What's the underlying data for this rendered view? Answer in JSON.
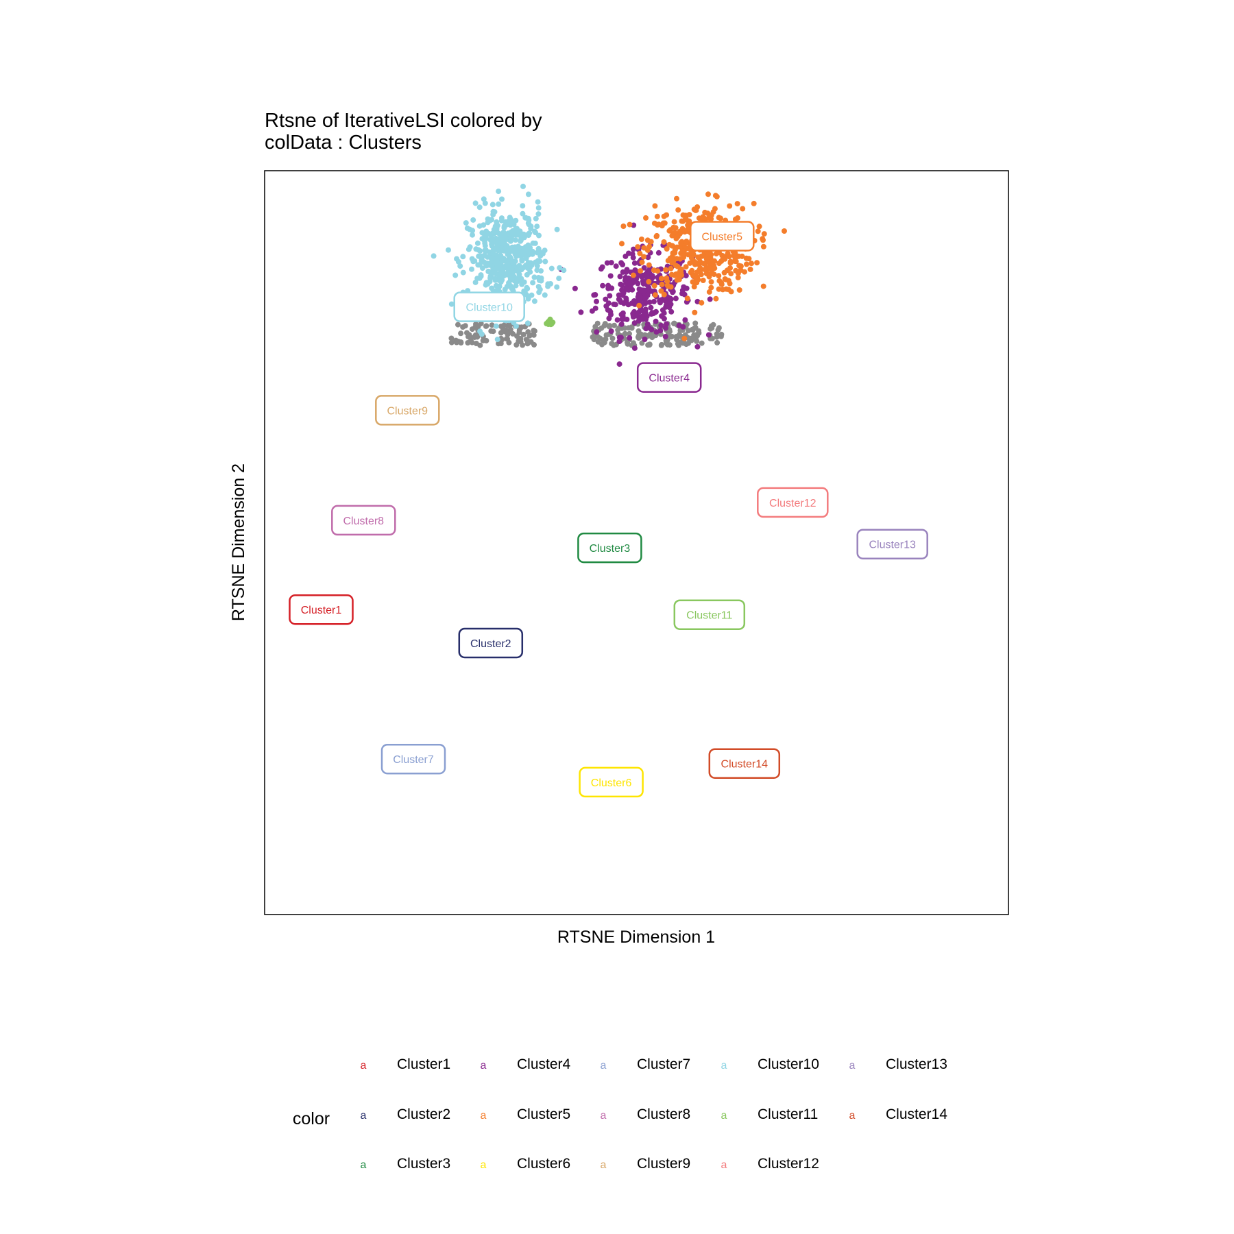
{
  "chart_data": {
    "type": "scatter",
    "title": "Rtsne of IterativeLSI  colored by colData :  Clusters",
    "title_lines": [
      "Rtsne of IterativeLSI  colored by",
      "colData :  Clusters"
    ],
    "xlabel": "RTSNE Dimension 1",
    "ylabel": "RTSNE Dimension 2",
    "xlim": [
      0,
      100
    ],
    "ylim": [
      0,
      100
    ],
    "grid": false,
    "legend": {
      "title": "color",
      "placement": "bottom",
      "key_glyph": "a"
    },
    "series": [
      {
        "name": "Cluster1",
        "color": "#D51F26",
        "label_x": 7.6,
        "label_y": 41.0,
        "n_points": 0
      },
      {
        "name": "Cluster2",
        "color": "#272E6A",
        "label_x": 30.4,
        "label_y": 36.5,
        "n_points": 0
      },
      {
        "name": "Cluster3",
        "color": "#208A42",
        "label_x": 46.4,
        "label_y": 49.3,
        "n_points": 0
      },
      {
        "name": "Cluster4",
        "color": "#89288F",
        "label_x": 54.4,
        "label_y": 72.2,
        "n_points": 300,
        "cx": 51.0,
        "cy": 83.5,
        "sx": 3.2,
        "sy": 2.8
      },
      {
        "name": "Cluster5",
        "color": "#F47D2B",
        "label_x": 61.5,
        "label_y": 91.2,
        "n_points": 420,
        "cx": 58.5,
        "cy": 89.5,
        "sx": 3.6,
        "sy": 3.0
      },
      {
        "name": "Cluster6",
        "color": "#FEE500",
        "label_x": 46.6,
        "label_y": 17.8,
        "n_points": 0
      },
      {
        "name": "Cluster7",
        "color": "#8A9FD1",
        "label_x": 20.0,
        "label_y": 20.9,
        "n_points": 0
      },
      {
        "name": "Cluster8",
        "color": "#C06CAB",
        "label_x": 13.3,
        "label_y": 53.0,
        "n_points": 0
      },
      {
        "name": "Cluster9",
        "color": "#D8A767",
        "label_x": 19.2,
        "label_y": 67.8,
        "n_points": 0
      },
      {
        "name": "Cluster10",
        "color": "#90D5E4",
        "label_x": 30.2,
        "label_y": 81.7,
        "n_points": 480,
        "cx": 32.5,
        "cy": 88.0,
        "sx": 2.6,
        "sy": 3.4
      },
      {
        "name": "Cluster11",
        "color": "#89C75F",
        "label_x": 59.8,
        "label_y": 40.3,
        "n_points": 12,
        "cx": 38.3,
        "cy": 79.5,
        "sx": 0.3,
        "sy": 0.2
      },
      {
        "name": "Cluster12",
        "color": "#F37B7D",
        "label_x": 71.0,
        "label_y": 55.4,
        "n_points": 0
      },
      {
        "name": "Cluster13",
        "color": "#9983BD",
        "label_x": 84.4,
        "label_y": 49.8,
        "n_points": 0
      },
      {
        "name": "Cluster14",
        "color": "#D24B27",
        "label_x": 64.5,
        "label_y": 20.3,
        "n_points": 0
      }
    ],
    "unassigned": {
      "color": "#8A8A8A",
      "n_points": 260
    }
  }
}
